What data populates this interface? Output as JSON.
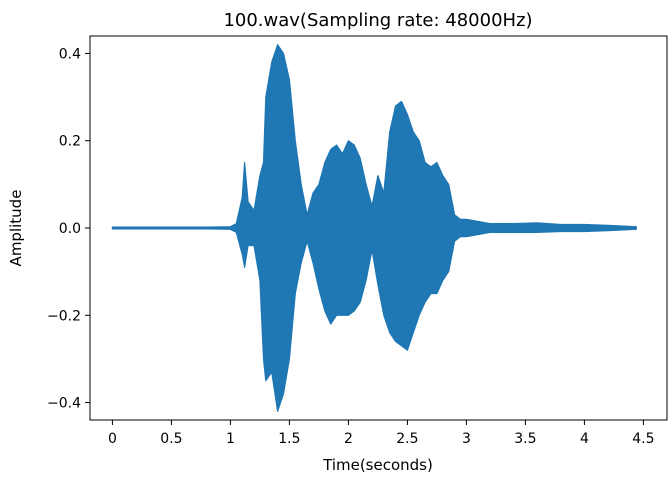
{
  "chart_data": {
    "type": "line",
    "title": "100.wav(Sampling rate: 48000Hz)",
    "xlabel": "Time(seconds)",
    "ylabel": "Amplitude",
    "xlim": [
      -0.19,
      4.7
    ],
    "ylim": [
      -0.44,
      0.44
    ],
    "x_ticks": [
      0,
      0.5,
      1,
      1.5,
      2,
      2.5,
      3,
      3.5,
      4,
      4.5
    ],
    "x_tick_labels": [
      "0",
      "0.5",
      "1",
      "1.5",
      "2",
      "2.5",
      "3",
      "3.5",
      "4",
      "4.5"
    ],
    "y_ticks": [
      -0.4,
      -0.2,
      0.0,
      0.2,
      0.4
    ],
    "y_tick_labels": [
      "−0.4",
      "−0.2",
      "0.0",
      "0.2",
      "0.4"
    ],
    "grid": false,
    "series": [
      {
        "color": "#1f77b4",
        "x": [
          0,
          0.2,
          0.4,
          0.6,
          0.8,
          1.0,
          1.05,
          1.1,
          1.12,
          1.15,
          1.2,
          1.25,
          1.28,
          1.3,
          1.35,
          1.4,
          1.45,
          1.5,
          1.55,
          1.6,
          1.65,
          1.7,
          1.75,
          1.8,
          1.85,
          1.9,
          1.95,
          2.0,
          2.05,
          2.1,
          2.15,
          2.2,
          2.25,
          2.3,
          2.35,
          2.4,
          2.45,
          2.5,
          2.55,
          2.6,
          2.65,
          2.7,
          2.75,
          2.8,
          2.85,
          2.9,
          2.95,
          3.0,
          3.2,
          3.4,
          3.6,
          3.8,
          4.0,
          4.2,
          4.44
        ],
        "upper": [
          0.002,
          0.002,
          0.002,
          0.002,
          0.002,
          0.003,
          0.01,
          0.07,
          0.15,
          0.06,
          0.04,
          0.12,
          0.15,
          0.3,
          0.38,
          0.42,
          0.4,
          0.34,
          0.2,
          0.1,
          0.03,
          0.08,
          0.1,
          0.15,
          0.18,
          0.19,
          0.17,
          0.2,
          0.19,
          0.16,
          0.1,
          0.05,
          0.12,
          0.08,
          0.22,
          0.28,
          0.29,
          0.26,
          0.22,
          0.2,
          0.15,
          0.14,
          0.15,
          0.12,
          0.1,
          0.03,
          0.02,
          0.02,
          0.01,
          0.01,
          0.012,
          0.008,
          0.008,
          0.006,
          0.003
        ],
        "lower": [
          -0.002,
          -0.002,
          -0.002,
          -0.002,
          -0.002,
          -0.003,
          -0.01,
          -0.06,
          -0.09,
          -0.04,
          -0.04,
          -0.12,
          -0.3,
          -0.35,
          -0.33,
          -0.42,
          -0.38,
          -0.3,
          -0.15,
          -0.08,
          -0.03,
          -0.08,
          -0.14,
          -0.19,
          -0.22,
          -0.2,
          -0.2,
          -0.2,
          -0.19,
          -0.17,
          -0.12,
          -0.05,
          -0.13,
          -0.2,
          -0.24,
          -0.26,
          -0.27,
          -0.28,
          -0.24,
          -0.2,
          -0.17,
          -0.15,
          -0.15,
          -0.12,
          -0.1,
          -0.03,
          -0.02,
          -0.02,
          -0.01,
          -0.01,
          -0.01,
          -0.008,
          -0.008,
          -0.006,
          -0.003
        ]
      }
    ]
  }
}
